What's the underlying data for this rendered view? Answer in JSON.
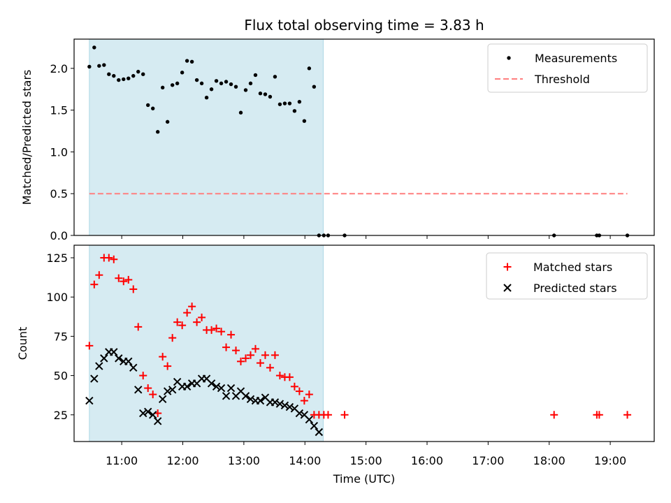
{
  "chart_data": {
    "title": "Flux total observing time = 3.83 h",
    "xlabel": "Time (UTC)",
    "x_axis": {
      "unit": "hours UTC",
      "xlim": [
        10.22,
        19.72
      ],
      "ticks": [
        11,
        12,
        13,
        14,
        15,
        16,
        17,
        18,
        19
      ],
      "tick_labels": [
        "11:00",
        "12:00",
        "13:00",
        "14:00",
        "15:00",
        "16:00",
        "17:00",
        "18:00",
        "19:00"
      ]
    },
    "observing_window": {
      "start": 10.47,
      "end": 14.3,
      "color": "#add8e6"
    },
    "panels": [
      {
        "type": "scatter",
        "ylabel": "Matched/Predicted stars",
        "ylim": [
          0,
          2.35
        ],
        "yticks": [
          0.0,
          0.5,
          1.0,
          1.5,
          2.0
        ],
        "ytick_labels": [
          "0.0",
          "0.5",
          "1.0",
          "1.5",
          "2.0"
        ],
        "legend": {
          "placement": "top-right"
        },
        "series": [
          {
            "name": "Measurements",
            "marker": "dot",
            "color": "#000000",
            "x": [
              10.47,
              10.55,
              10.63,
              10.71,
              10.79,
              10.87,
              10.95,
              11.03,
              11.11,
              11.19,
              11.27,
              11.35,
              11.43,
              11.51,
              11.59,
              11.67,
              11.75,
              11.83,
              11.91,
              11.99,
              12.07,
              12.15,
              12.23,
              12.31,
              12.39,
              12.47,
              12.55,
              12.63,
              12.71,
              12.79,
              12.87,
              12.95,
              13.03,
              13.11,
              13.19,
              13.27,
              13.35,
              13.43,
              13.51,
              13.59,
              13.67,
              13.75,
              13.83,
              13.91,
              13.99,
              14.07,
              14.15,
              14.23,
              14.31,
              14.38,
              14.65,
              18.08,
              18.78,
              18.82,
              19.28
            ],
            "y": [
              2.02,
              2.25,
              2.03,
              2.04,
              1.93,
              1.91,
              1.86,
              1.87,
              1.88,
              1.91,
              1.96,
              1.93,
              1.56,
              1.52,
              1.24,
              1.77,
              1.36,
              1.8,
              1.82,
              1.95,
              2.09,
              2.08,
              1.86,
              1.82,
              1.65,
              1.75,
              1.85,
              1.82,
              1.84,
              1.81,
              1.78,
              1.47,
              1.74,
              1.82,
              1.92,
              1.7,
              1.69,
              1.66,
              1.9,
              1.57,
              1.58,
              1.58,
              1.49,
              1.6,
              1.37,
              2.0,
              1.78,
              0,
              0,
              0,
              0,
              0,
              0,
              0,
              0
            ]
          },
          {
            "name": "Threshold",
            "marker": "dashed-line",
            "color": "#ff7f7f",
            "x": [
              10.47,
              19.28
            ],
            "y": [
              0.5,
              0.5
            ]
          }
        ]
      },
      {
        "type": "scatter",
        "ylabel": "Count",
        "ylim": [
          8,
          133
        ],
        "yticks": [
          25,
          50,
          75,
          100,
          125
        ],
        "ytick_labels": [
          "25",
          "50",
          "75",
          "100",
          "125"
        ],
        "legend": {
          "placement": "top-right"
        },
        "series": [
          {
            "name": "Matched stars",
            "marker": "plus",
            "color": "#ff0000",
            "x": [
              10.47,
              10.55,
              10.63,
              10.71,
              10.79,
              10.87,
              10.95,
              11.03,
              11.11,
              11.19,
              11.27,
              11.35,
              11.43,
              11.51,
              11.59,
              11.67,
              11.75,
              11.83,
              11.91,
              11.99,
              12.07,
              12.15,
              12.23,
              12.31,
              12.39,
              12.47,
              12.55,
              12.63,
              12.71,
              12.79,
              12.87,
              12.95,
              13.03,
              13.11,
              13.19,
              13.27,
              13.35,
              13.43,
              13.51,
              13.59,
              13.67,
              13.75,
              13.83,
              13.91,
              13.99,
              14.07,
              14.15,
              14.23,
              14.31,
              14.38,
              14.65,
              18.08,
              18.78,
              18.82,
              19.28
            ],
            "y": [
              69,
              108,
              114,
              125,
              125,
              124,
              112,
              110,
              111,
              105,
              81,
              50,
              42,
              38,
              26,
              62,
              56,
              74,
              84,
              82,
              90,
              94,
              84,
              87,
              79,
              79,
              80,
              78,
              68,
              76,
              66,
              59,
              61,
              63,
              67,
              58,
              63,
              55,
              63,
              50,
              49,
              49,
              43,
              40,
              34,
              38,
              25,
              25,
              25,
              25,
              25,
              25,
              25,
              25,
              25
            ]
          },
          {
            "name": "Predicted stars",
            "marker": "x",
            "color": "#000000",
            "x": [
              10.47,
              10.55,
              10.63,
              10.71,
              10.79,
              10.87,
              10.95,
              11.03,
              11.11,
              11.19,
              11.27,
              11.35,
              11.43,
              11.51,
              11.59,
              11.67,
              11.75,
              11.83,
              11.91,
              11.99,
              12.07,
              12.15,
              12.23,
              12.31,
              12.39,
              12.47,
              12.55,
              12.63,
              12.71,
              12.79,
              12.87,
              12.95,
              13.03,
              13.11,
              13.19,
              13.27,
              13.35,
              13.43,
              13.51,
              13.59,
              13.67,
              13.75,
              13.83,
              13.91,
              13.99,
              14.07,
              14.15,
              14.23
            ],
            "y": [
              34,
              48,
              56,
              61,
              65,
              65,
              61,
              59,
              59,
              55,
              41,
              26,
              27,
              25,
              21,
              35,
              40,
              41,
              46,
              43,
              43,
              45,
              45,
              48,
              48,
              45,
              43,
              42,
              37,
              42,
              37,
              40,
              37,
              35,
              34,
              34,
              36,
              33,
              33,
              32,
              31,
              30,
              29,
              26,
              25,
              22,
              18,
              14
            ]
          }
        ]
      }
    ]
  }
}
